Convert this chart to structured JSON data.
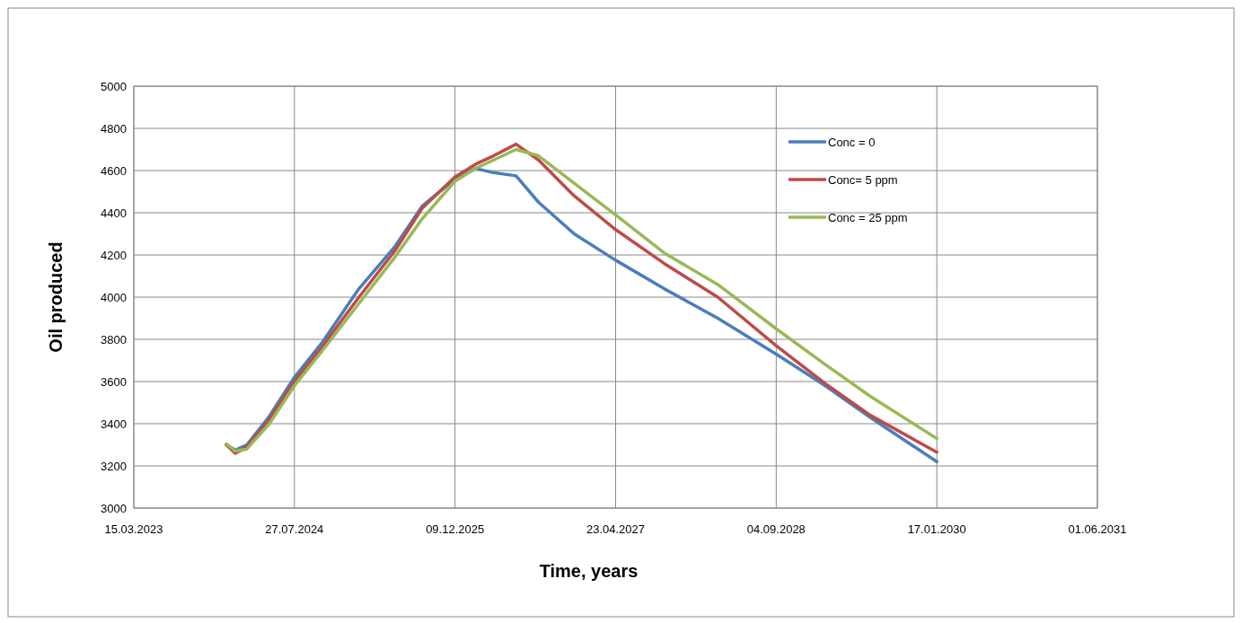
{
  "chart_data": {
    "type": "line",
    "xlabel": "Time, years",
    "ylabel": "Oil produced",
    "xlim": [
      "2023-03-15",
      "2031-06-01"
    ],
    "xticks": [
      {
        "value": "2023-03-15",
        "label": "15.03.2023"
      },
      {
        "value": "2024-07-27",
        "label": "27.07.2024"
      },
      {
        "value": "2025-12-09",
        "label": "09.12.2025"
      },
      {
        "value": "2027-04-23",
        "label": "23.04.2027"
      },
      {
        "value": "2028-09-04",
        "label": "04.09.2028"
      },
      {
        "value": "2030-01-17",
        "label": "17.01.2030"
      },
      {
        "value": "2031-06-01",
        "label": "01.06.2031"
      }
    ],
    "ylim": [
      3000,
      5000
    ],
    "yticks": [
      3000,
      3200,
      3400,
      3600,
      3800,
      4000,
      4200,
      4400,
      4600,
      4800,
      5000
    ],
    "grid": true,
    "legend": "top right",
    "marker": "none",
    "line_style": "solid",
    "x": [
      "2023-12-28",
      "2024-01-25",
      "2024-03-01",
      "2024-05-10",
      "2024-07-27",
      "2024-10-24",
      "2025-02-13",
      "2025-06-05",
      "2025-08-28",
      "2025-12-09",
      "2026-02-11",
      "2026-04-08",
      "2026-06-17",
      "2026-08-26",
      "2026-12-15",
      "2027-04-23",
      "2027-09-21",
      "2028-03-06",
      "2028-09-04",
      "2029-02-04",
      "2029-06-24",
      "2030-01-17"
    ],
    "series": [
      {
        "name": "Conc = 0",
        "color": "#4a7ebb",
        "values": [
          3300,
          3275,
          3300,
          3435,
          3620,
          3790,
          4040,
          4240,
          4430,
          4560,
          4610,
          4590,
          4575,
          4450,
          4300,
          4175,
          4040,
          3900,
          3730,
          3580,
          3430,
          3220
        ]
      },
      {
        "name": "Conc= 5 ppm",
        "color": "#be4b48",
        "values": [
          3300,
          3260,
          3290,
          3420,
          3600,
          3770,
          4000,
          4220,
          4420,
          4570,
          4630,
          4670,
          4725,
          4650,
          4480,
          4320,
          4160,
          4000,
          3770,
          3590,
          3440,
          3265
        ]
      },
      {
        "name": "Conc = 25 ppm",
        "color": "#98b954",
        "values": [
          3305,
          3270,
          3280,
          3400,
          3580,
          3750,
          3970,
          4190,
          4370,
          4550,
          4610,
          4650,
          4700,
          4670,
          4540,
          4390,
          4210,
          4060,
          3850,
          3680,
          3530,
          3330
        ]
      }
    ]
  }
}
